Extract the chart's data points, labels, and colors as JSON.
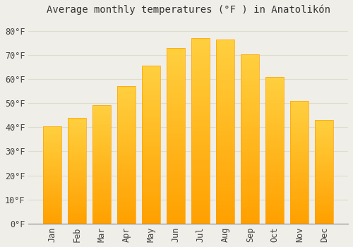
{
  "title": "Average monthly temperatures (°F ) in Anatolikón",
  "months": [
    "Jan",
    "Feb",
    "Mar",
    "Apr",
    "May",
    "Jun",
    "Jul",
    "Aug",
    "Sep",
    "Oct",
    "Nov",
    "Dec"
  ],
  "values": [
    40.5,
    44.0,
    49.3,
    57.0,
    65.5,
    73.0,
    77.0,
    76.5,
    70.3,
    61.0,
    51.0,
    43.0
  ],
  "bar_color_top": "#FFD040",
  "bar_color_bottom": "#FFA000",
  "background_color": "#F0EEE8",
  "plot_bg_color": "#F0EEE8",
  "grid_color": "#DDDDCC",
  "title_fontsize": 10,
  "tick_fontsize": 8.5,
  "ylabel_ticks": [
    0,
    10,
    20,
    30,
    40,
    50,
    60,
    70,
    80
  ],
  "ylim": [
    0,
    85
  ],
  "font_family": "monospace"
}
